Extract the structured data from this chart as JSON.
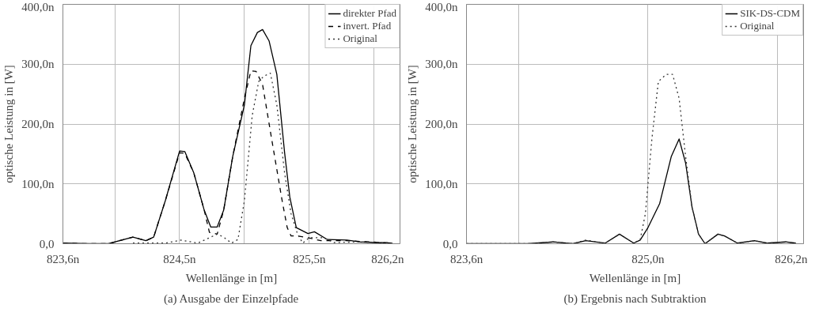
{
  "chart_data": [
    {
      "type": "line",
      "xlabel": "Wellenlänge in [m]",
      "ylabel": "optische Leistung in [W]",
      "annotations": [
        "(a) Ausgabe der Einzelpfade"
      ],
      "xlim": [
        823.6,
        826.2
      ],
      "ylim": [
        0,
        400
      ],
      "xticks": [
        {
          "value": 823.6,
          "label": "823,6n"
        },
        {
          "value": 824,
          "label": null
        },
        {
          "value": 824.5,
          "label": "824,5n"
        },
        {
          "value": 825,
          "label": null
        },
        {
          "value": 825.5,
          "label": "825,5n"
        },
        {
          "value": 826,
          "label": null
        },
        {
          "value": 826.2,
          "label": "826,2n"
        }
      ],
      "yticks": [
        {
          "value": 0,
          "label": "0,0"
        },
        {
          "value": 100,
          "label": "100,0n"
        },
        {
          "value": 200,
          "label": "200,0n"
        },
        {
          "value": 300,
          "label": "300,0n"
        },
        {
          "value": 400,
          "label": "400,0n"
        }
      ],
      "grid": true,
      "legend": "top right",
      "series": [
        {
          "name": "direkter Pfad",
          "color": "#000000",
          "line_style": "solid",
          "x": [
            823.6,
            823.8,
            823.95,
            824.14,
            824.24,
            824.3,
            824.39,
            824.5,
            824.54,
            824.61,
            824.69,
            824.74,
            824.79,
            824.84,
            824.91,
            825.0,
            825.05,
            825.1,
            825.14,
            825.19,
            825.25,
            825.31,
            825.35,
            825.4,
            825.49,
            825.54,
            825.64,
            825.79,
            825.89,
            826.14
          ],
          "values": [
            1,
            0,
            0,
            11,
            5,
            11,
            72,
            155,
            154,
            118,
            56,
            28,
            28,
            56,
            146,
            232,
            331,
            353,
            358,
            339,
            283,
            152,
            78,
            27,
            17,
            20,
            7,
            6,
            3,
            1
          ]
        },
        {
          "name": "invert. Pfad",
          "color": "#000000",
          "line_style": "dashed",
          "x": [
            823.6,
            823.8,
            823.95,
            824.14,
            824.24,
            824.3,
            824.39,
            824.5,
            824.54,
            824.61,
            824.69,
            824.73,
            824.79,
            824.84,
            824.91,
            825.0,
            825.05,
            825.09,
            825.14,
            825.21,
            825.29,
            825.33,
            825.36,
            825.41,
            825.49,
            825.59,
            825.79,
            826.14
          ],
          "values": [
            1,
            0,
            0,
            11,
            5,
            11,
            72,
            152,
            151,
            118,
            56,
            19,
            16,
            56,
            146,
            243,
            289,
            288,
            266,
            175,
            73,
            27,
            13,
            13,
            10,
            5,
            5,
            1
          ]
        },
        {
          "name": "Original",
          "color": "#333333",
          "line_style": "dotted",
          "x": [
            824.14,
            824.39,
            824.51,
            824.64,
            824.79,
            824.84,
            824.9,
            824.95,
            825.0,
            825.06,
            825.11,
            825.15,
            825.2,
            825.25,
            825.31,
            825.36,
            825.41,
            825.45,
            825.5,
            825.61,
            825.69,
            825.89,
            826.14
          ],
          "values": [
            1,
            1,
            6,
            1,
            16,
            11,
            1,
            7,
            72,
            214,
            271,
            280,
            285,
            232,
            118,
            50,
            16,
            1,
            10,
            10,
            2,
            3,
            1
          ]
        }
      ]
    },
    {
      "type": "line",
      "xlabel": "Wellenlänge in [m]",
      "ylabel": "optische Leistung in [W]",
      "annotations": [
        "(b) Ergebnis nach Subtraktion"
      ],
      "xlim": [
        823.6,
        826.2
      ],
      "ylim": [
        0,
        400
      ],
      "xticks": [
        {
          "value": 823.6,
          "label": "823,6n"
        },
        {
          "value": 824,
          "label": null
        },
        {
          "value": 825,
          "label": "825,0n"
        },
        {
          "value": 826,
          "label": null
        },
        {
          "value": 826.2,
          "label": "826,2n"
        }
      ],
      "yticks": [
        {
          "value": 0,
          "label": "0,0"
        },
        {
          "value": 100,
          "label": "100,0n"
        },
        {
          "value": 200,
          "label": "200,0n"
        },
        {
          "value": 300,
          "label": "300,0n"
        },
        {
          "value": 400,
          "label": "400,0n"
        }
      ],
      "grid": true,
      "legend": "top right",
      "series": [
        {
          "name": "SIK-DS-CDM",
          "color": "#000000",
          "line_style": "solid",
          "x": [
            823.6,
            824.07,
            824.27,
            824.42,
            824.52,
            824.67,
            824.78,
            824.89,
            824.94,
            825.0,
            825.09,
            825.18,
            825.24,
            825.29,
            825.34,
            825.39,
            825.44,
            825.54,
            825.59,
            825.69,
            825.82,
            825.92,
            826.06,
            826.14
          ],
          "values": [
            0,
            0,
            3,
            0,
            5,
            1,
            16,
            1,
            6,
            27,
            67,
            146,
            175,
            135,
            61,
            16,
            0,
            16,
            13,
            1,
            5,
            1,
            3,
            1
          ]
        },
        {
          "name": "Original",
          "color": "#333333",
          "line_style": "dotted",
          "x": [
            823.6,
            824.07,
            824.27,
            824.42,
            824.52,
            824.67,
            824.78,
            824.89,
            824.94,
            824.98,
            825.03,
            825.08,
            825.14,
            825.19,
            825.24,
            825.29,
            825.34,
            825.39,
            825.44,
            825.54,
            825.59,
            825.69,
            825.82,
            825.92,
            826.06,
            826.14
          ],
          "values": [
            0,
            0,
            3,
            0,
            6,
            1,
            16,
            1,
            7,
            50,
            175,
            271,
            283,
            283,
            243,
            146,
            61,
            16,
            0,
            16,
            13,
            1,
            5,
            1,
            3,
            1
          ]
        }
      ]
    }
  ]
}
